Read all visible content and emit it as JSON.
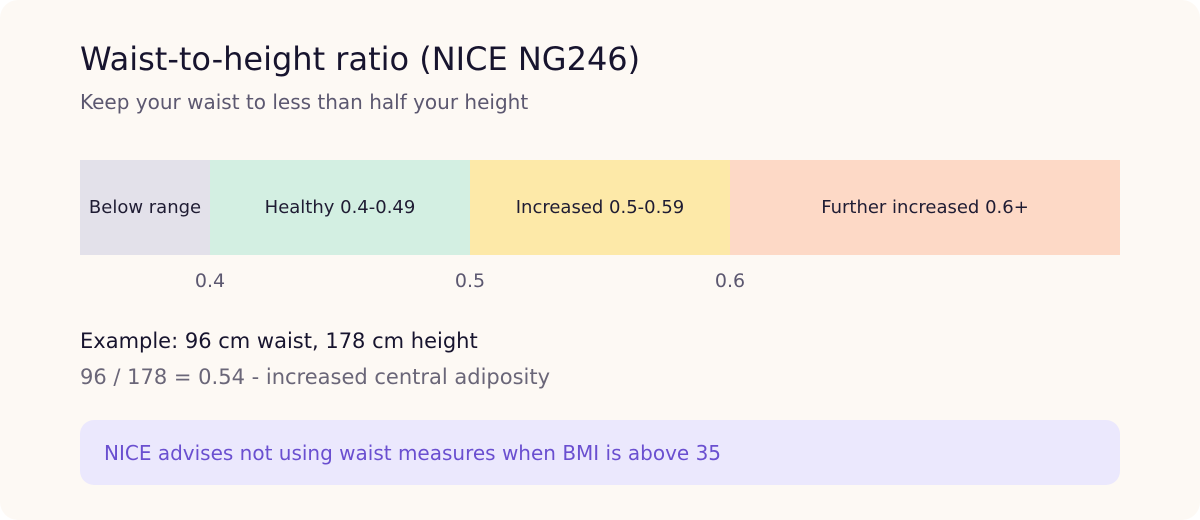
{
  "card": {
    "title": "Waist-to-height ratio (NICE NG246)",
    "subtitle": "Keep your waist to less than half your height",
    "bands": [
      "Below range",
      "Healthy 0.4-0.49",
      "Increased 0.5-0.59",
      "Further increased 0.6+"
    ],
    "boundaries": [
      "0.4",
      "0.5",
      "0.6"
    ],
    "example": {
      "heading": "Example: 96 cm waist, 178 cm height",
      "result": "96 / 178 = 0.54 - increased central adiposity"
    },
    "note": "NICE advises not using waist measures when BMI is above 35"
  }
}
